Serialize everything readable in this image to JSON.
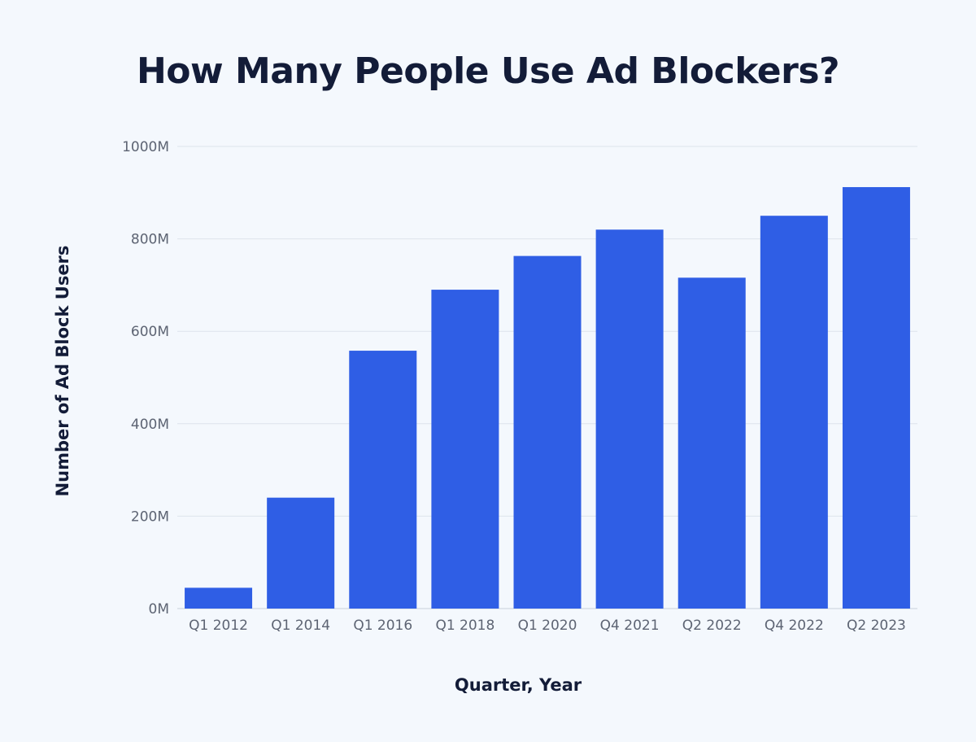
{
  "chart_data": {
    "type": "bar",
    "title": "How Many People Use Ad Blockers?",
    "xlabel": "Quarter, Year",
    "ylabel": "Number of Ad Block Users",
    "categories": [
      "Q1 2012",
      "Q1 2014",
      "Q1 2016",
      "Q1 2018",
      "Q1 2020",
      "Q4 2021",
      "Q2 2022",
      "Q4 2022",
      "Q2 2023"
    ],
    "values": [
      45,
      240,
      558,
      690,
      763,
      820,
      716,
      850,
      912
    ],
    "unit": "M",
    "ylim": [
      0,
      1000
    ],
    "yticks": [
      0,
      200,
      400,
      600,
      800,
      1000
    ],
    "ytick_labels": [
      "0M",
      "200M",
      "400M",
      "600M",
      "800M",
      "1000M"
    ],
    "grid": true,
    "legend": "none",
    "bar_color": "#2f5ee5"
  }
}
